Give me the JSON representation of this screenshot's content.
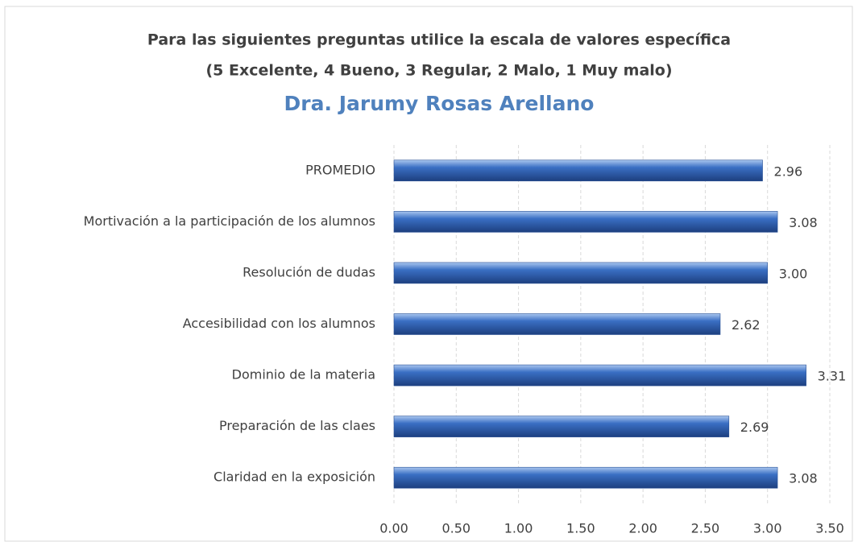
{
  "chart_data": {
    "type": "hbar",
    "title": [
      "Para las siguientes preguntas utilice la escala de valores específica",
      "(5 Excelente, 4 Bueno, 3 Regular, 2 Malo, 1 Muy malo)"
    ],
    "subtitle": "Dra. Jarumy Rosas Arellano",
    "categories": [
      "PROMEDIO",
      "Mortivación a la participación de los alumnos",
      "Resolución de dudas",
      "Accesibilidad con los alumnos",
      "Dominio de la materia",
      "Preparación de las claes",
      "Claridad en la exposición"
    ],
    "values": [
      2.96,
      3.08,
      3.0,
      2.62,
      3.31,
      2.69,
      3.08
    ],
    "value_labels": [
      "2.96",
      "3.08",
      "3.00",
      "2.62",
      "3.31",
      "2.69",
      "3.08"
    ],
    "color": "#3a6fc4",
    "xlim": [
      0,
      3.5
    ],
    "xticks": [
      {
        "value": 0,
        "label": "0.00"
      },
      {
        "value": 0.5,
        "label": "0.50"
      },
      {
        "value": 1,
        "label": "1.00"
      },
      {
        "value": 1.5,
        "label": "1.50"
      },
      {
        "value": 2,
        "label": "2.00"
      },
      {
        "value": 2.5,
        "label": "2.50"
      },
      {
        "value": 3,
        "label": "3.00"
      },
      {
        "value": 3.5,
        "label": "3.50"
      }
    ],
    "grid": true
  }
}
